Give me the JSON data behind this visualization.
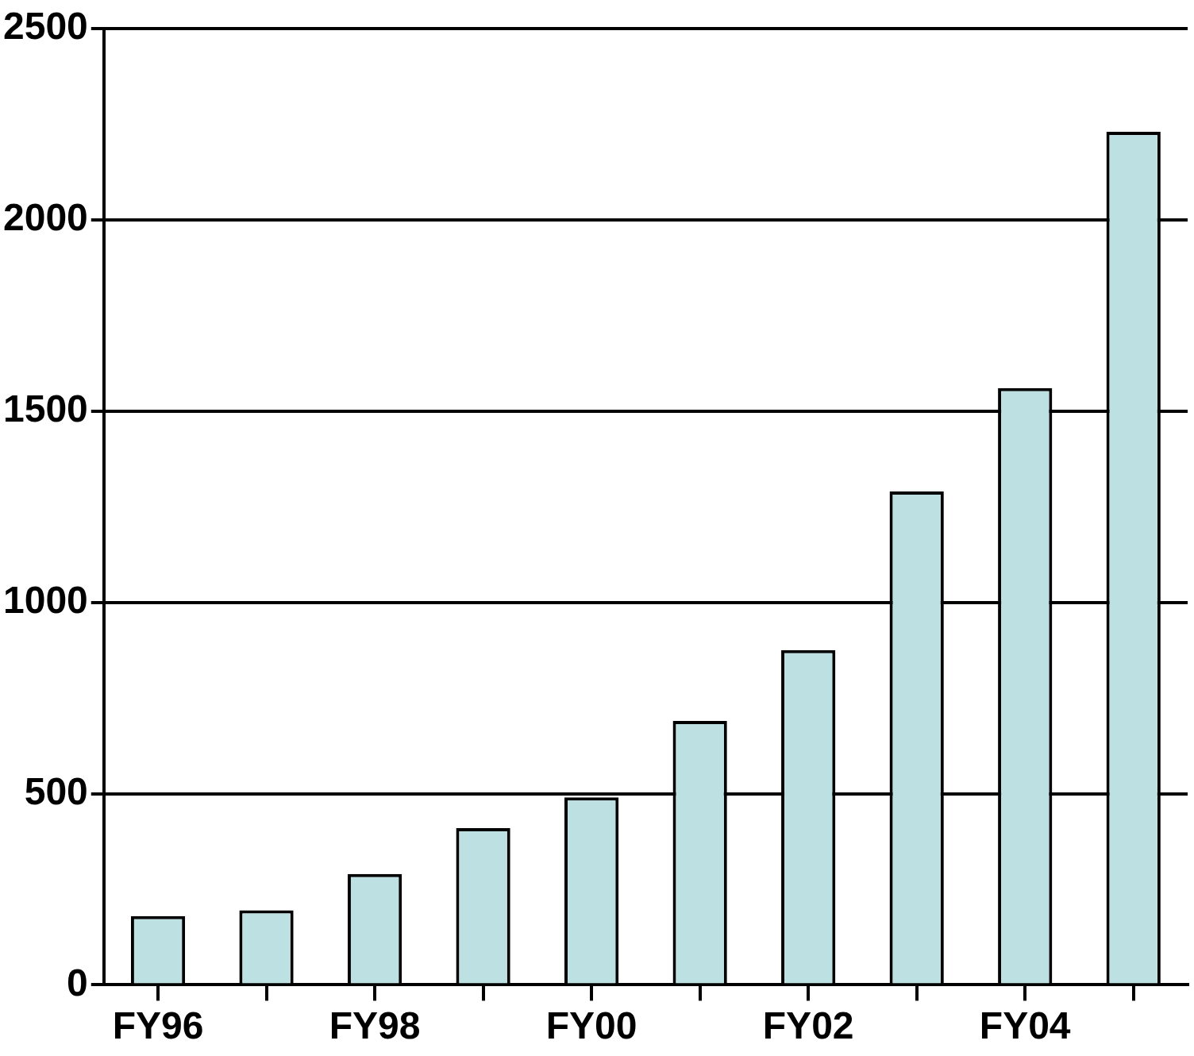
{
  "chart_data": {
    "type": "bar",
    "categories": [
      "FY96",
      null,
      "FY98",
      null,
      "FY00",
      null,
      "FY02",
      null,
      "FY04",
      null
    ],
    "series": [
      {
        "color": "#bde0e3",
        "values": [
          180,
          195,
          290,
          410,
          490,
          690,
          875,
          1290,
          1560,
          2230
        ]
      }
    ],
    "ylim": [
      0,
      2500
    ],
    "yticks": [
      0,
      500,
      1000,
      1500,
      2000,
      2500
    ],
    "grid": "y",
    "legend": false
  }
}
